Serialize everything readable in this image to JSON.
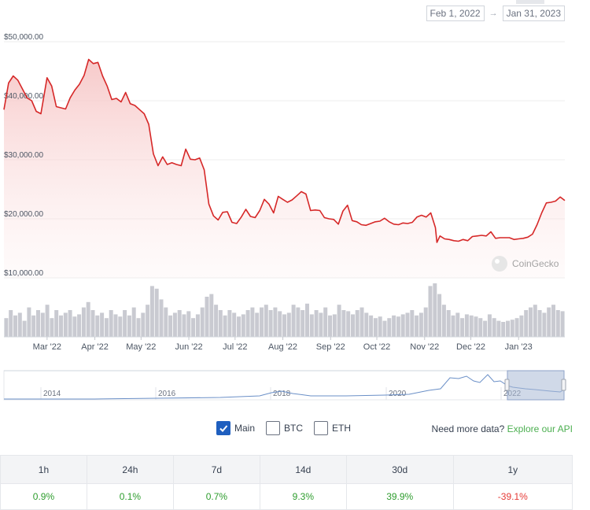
{
  "date_range": {
    "start": "Feb 1, 2022",
    "arrow": "→",
    "end": "Jan 31, 2023"
  },
  "watermark": "CoinGecko",
  "chart_data": {
    "type": "line",
    "y_ticks": [
      "$50,000.00",
      "$40,000.00",
      "$30,000.00",
      "$20,000.00",
      "$10,000.00"
    ],
    "y_tick_values": [
      50000,
      40000,
      30000,
      20000,
      10000
    ],
    "ylim": [
      10000,
      50000
    ],
    "x_ticks": [
      "Mar '22",
      "Apr '22",
      "May '22",
      "Jun '22",
      "Jul '22",
      "Aug '22",
      "Sep '22",
      "Oct '22",
      "Nov '22",
      "Dec '22",
      "Jan '23"
    ],
    "x_tick_dates": [
      "2022-03-01",
      "2022-04-01",
      "2022-05-01",
      "2022-06-01",
      "2022-07-01",
      "2022-08-01",
      "2022-09-01",
      "2022-10-01",
      "2022-11-01",
      "2022-12-01",
      "2023-01-01"
    ],
    "xlim": [
      "2022-02-01",
      "2023-01-31"
    ],
    "price_series": {
      "x": [
        "2022-02-01",
        "2022-02-04",
        "2022-02-07",
        "2022-02-10",
        "2022-02-13",
        "2022-02-16",
        "2022-02-19",
        "2022-02-22",
        "2022-02-25",
        "2022-03-01",
        "2022-03-04",
        "2022-03-07",
        "2022-03-10",
        "2022-03-13",
        "2022-03-16",
        "2022-03-19",
        "2022-03-22",
        "2022-03-25",
        "2022-03-28",
        "2022-03-31",
        "2022-04-03",
        "2022-04-06",
        "2022-04-09",
        "2022-04-12",
        "2022-04-15",
        "2022-04-18",
        "2022-04-21",
        "2022-04-24",
        "2022-04-27",
        "2022-04-30",
        "2022-05-03",
        "2022-05-06",
        "2022-05-09",
        "2022-05-12",
        "2022-05-15",
        "2022-05-18",
        "2022-05-21",
        "2022-05-24",
        "2022-05-27",
        "2022-05-30",
        "2022-06-02",
        "2022-06-05",
        "2022-06-08",
        "2022-06-11",
        "2022-06-14",
        "2022-06-17",
        "2022-06-20",
        "2022-06-23",
        "2022-06-26",
        "2022-06-29",
        "2022-07-02",
        "2022-07-05",
        "2022-07-08",
        "2022-07-11",
        "2022-07-14",
        "2022-07-17",
        "2022-07-20",
        "2022-07-23",
        "2022-07-26",
        "2022-07-29",
        "2022-08-01",
        "2022-08-04",
        "2022-08-07",
        "2022-08-10",
        "2022-08-13",
        "2022-08-16",
        "2022-08-19",
        "2022-08-22",
        "2022-08-25",
        "2022-08-28",
        "2022-08-31",
        "2022-09-03",
        "2022-09-06",
        "2022-09-09",
        "2022-09-12",
        "2022-09-15",
        "2022-09-18",
        "2022-09-21",
        "2022-09-24",
        "2022-09-27",
        "2022-09-30",
        "2022-10-03",
        "2022-10-06",
        "2022-10-09",
        "2022-10-12",
        "2022-10-15",
        "2022-10-18",
        "2022-10-21",
        "2022-10-24",
        "2022-10-27",
        "2022-10-30",
        "2022-11-02",
        "2022-11-05",
        "2022-11-08",
        "2022-11-09",
        "2022-11-11",
        "2022-11-14",
        "2022-11-17",
        "2022-11-20",
        "2022-11-23",
        "2022-11-26",
        "2022-11-29",
        "2022-12-02",
        "2022-12-05",
        "2022-12-08",
        "2022-12-11",
        "2022-12-14",
        "2022-12-17",
        "2022-12-20",
        "2022-12-23",
        "2022-12-26",
        "2022-12-29",
        "2023-01-01",
        "2023-01-04",
        "2023-01-07",
        "2023-01-10",
        "2023-01-13",
        "2023-01-16",
        "2023-01-19",
        "2023-01-22",
        "2023-01-25",
        "2023-01-28",
        "2023-01-31"
      ],
      "y": [
        38500,
        43000,
        44200,
        43500,
        42000,
        40500,
        40000,
        38200,
        37800,
        43900,
        42500,
        39000,
        38800,
        38600,
        40500,
        41800,
        42800,
        44300,
        47000,
        46300,
        46500,
        44200,
        42500,
        40200,
        40400,
        39800,
        41400,
        39500,
        39200,
        38500,
        37800,
        36000,
        31000,
        29000,
        30500,
        29200,
        29500,
        29200,
        29000,
        31800,
        30100,
        30000,
        30300,
        28300,
        22500,
        20500,
        19800,
        21100,
        21200,
        19400,
        19200,
        20300,
        21600,
        20400,
        20200,
        21400,
        23300,
        22500,
        21000,
        23800,
        23300,
        22800,
        23200,
        23900,
        24600,
        24200,
        21400,
        21500,
        21400,
        20200,
        20000,
        19900,
        19100,
        21300,
        22300,
        19700,
        19500,
        19000,
        18900,
        19200,
        19500,
        19600,
        20100,
        19500,
        19100,
        19000,
        19300,
        19200,
        19400,
        20300,
        20600,
        20300,
        21000,
        18500,
        16000,
        17100,
        16600,
        16500,
        16300,
        16200,
        16500,
        16300,
        17000,
        17100,
        17200,
        17100,
        17800,
        16700,
        16800,
        16800,
        16800,
        16500,
        16600,
        16700,
        16900,
        17400,
        19000,
        21000,
        22700,
        22800,
        23000,
        23700,
        23100
      ],
      "line_color": "#d62828"
    },
    "volume_series": {
      "values": [
        0.35,
        0.5,
        0.4,
        0.45,
        0.3,
        0.55,
        0.4,
        0.5,
        0.45,
        0.6,
        0.35,
        0.5,
        0.4,
        0.45,
        0.5,
        0.38,
        0.42,
        0.55,
        0.65,
        0.5,
        0.4,
        0.45,
        0.35,
        0.5,
        0.42,
        0.38,
        0.5,
        0.4,
        0.55,
        0.35,
        0.45,
        0.6,
        0.95,
        0.9,
        0.7,
        0.55,
        0.4,
        0.45,
        0.5,
        0.42,
        0.48,
        0.35,
        0.42,
        0.55,
        0.75,
        0.8,
        0.6,
        0.5,
        0.4,
        0.5,
        0.45,
        0.38,
        0.42,
        0.5,
        0.55,
        0.45,
        0.55,
        0.6,
        0.5,
        0.55,
        0.48,
        0.42,
        0.45,
        0.6,
        0.55,
        0.5,
        0.62,
        0.42,
        0.5,
        0.45,
        0.55,
        0.4,
        0.42,
        0.6,
        0.5,
        0.48,
        0.42,
        0.5,
        0.55,
        0.45,
        0.4,
        0.35,
        0.38,
        0.3,
        0.35,
        0.4,
        0.38,
        0.42,
        0.45,
        0.5,
        0.4,
        0.45,
        0.55,
        0.95,
        1.0,
        0.8,
        0.6,
        0.5,
        0.4,
        0.45,
        0.35,
        0.42,
        0.4,
        0.38,
        0.35,
        0.3,
        0.42,
        0.35,
        0.3,
        0.28,
        0.3,
        0.32,
        0.35,
        0.4,
        0.5,
        0.55,
        0.6,
        0.5,
        0.45,
        0.55,
        0.6,
        0.5,
        0.48
      ],
      "bar_color": "#c9cad1"
    },
    "navigator": {
      "labels": [
        "2014",
        "2016",
        "2018",
        "2020",
        "2022"
      ]
    }
  },
  "options": {
    "checkboxes": [
      {
        "label": "Main",
        "checked": true
      },
      {
        "label": "BTC",
        "checked": false
      },
      {
        "label": "ETH",
        "checked": false
      }
    ],
    "more_text": "Need more data?",
    "more_link": "Explore our API"
  },
  "performance": {
    "headers": [
      "1h",
      "24h",
      "7d",
      "14d",
      "30d",
      "1y"
    ],
    "values": [
      {
        "text": "0.9%",
        "dir": "pos"
      },
      {
        "text": "0.1%",
        "dir": "pos"
      },
      {
        "text": "0.7%",
        "dir": "pos"
      },
      {
        "text": "9.3%",
        "dir": "pos"
      },
      {
        "text": "39.9%",
        "dir": "pos"
      },
      {
        "text": "-39.1%",
        "dir": "neg"
      }
    ]
  }
}
